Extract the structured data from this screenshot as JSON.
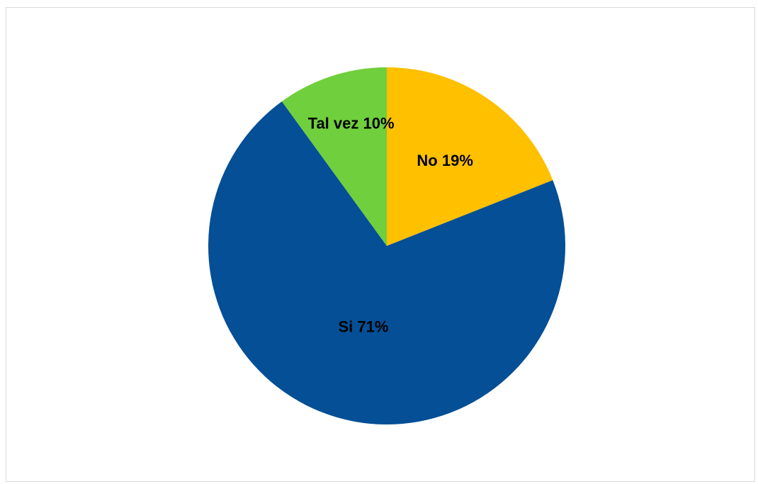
{
  "chart_data": {
    "type": "pie",
    "title": "",
    "slices": [
      {
        "label": "No",
        "value": 19,
        "display": "No 19%",
        "color": "#FFC000"
      },
      {
        "label": "Si",
        "value": 71,
        "display": "Si 71%",
        "color": "#044F96"
      },
      {
        "label": "Tal vez",
        "value": 10,
        "display": "Tal vez 10%",
        "color": "#70CF3C"
      }
    ],
    "start_angle": "12 o'clock",
    "direction": "clockwise",
    "legend": "none"
  }
}
